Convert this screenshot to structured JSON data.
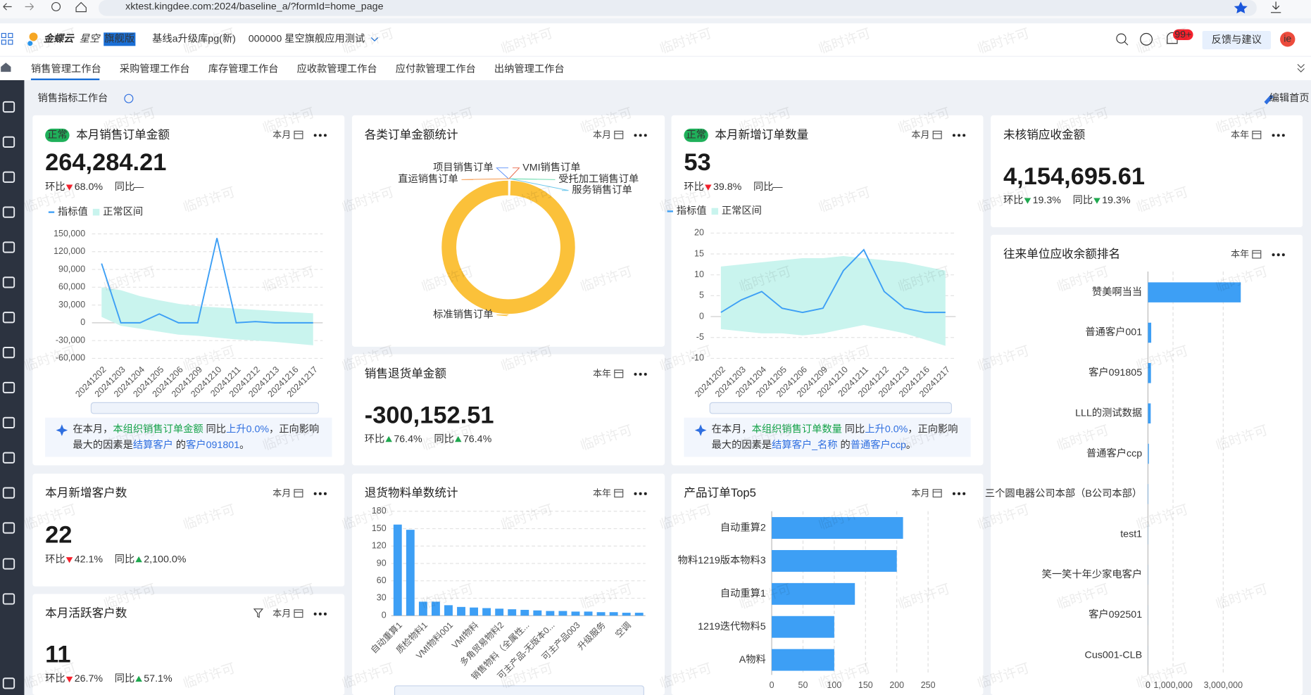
{
  "browser": {
    "url": "xktest.kingdee.com:2024/baseline_a/?formId=home_page"
  },
  "header": {
    "brand": "金蝶云",
    "product": "星空",
    "edition": "旗舰版",
    "org": "基线a升级库pg(新)",
    "tenant": "000000 星空旗舰应用测试",
    "badge": "99+",
    "feedback": "反馈与建议",
    "avatar": "ie"
  },
  "tabs": [
    "销售管理工作台",
    "采购管理工作台",
    "库存管理工作台",
    "应收款管理工作台",
    "应付款管理工作台",
    "出纳管理工作台"
  ],
  "page_title": "销售指标工作台",
  "edit": "编辑首页",
  "watermark": "临时许可",
  "cards": {
    "sales_amount": {
      "tag": "正常",
      "title": "本月销售订单金额",
      "period": "本月",
      "kpi": "264,284.21",
      "mom_label": "环比",
      "mom": {
        "text": "68.0%",
        "trend": "down",
        "color": "#f5222d"
      },
      "yoy_label": "同比",
      "yoy": {
        "text": "—",
        "color": "#666666"
      },
      "chart": {
        "type": "line",
        "categories": [
          "20241202",
          "20241203",
          "20241204",
          "20241205",
          "20241206",
          "20241209",
          "20241210",
          "20241211",
          "20241212",
          "20241213",
          "20241216",
          "20241217"
        ],
        "series": [
          {
            "name": "指标值",
            "color": "#3d9ff5",
            "values": [
              100000,
              0,
              0,
              15000,
              0,
              0,
              143000,
              0,
              2000,
              0,
              0,
              0
            ]
          },
          {
            "name": "正常区间",
            "color": "#c9f4ee",
            "upper": [
              60000,
              55000,
              45000,
              38000,
              32000,
              28000,
              26000,
              24000,
              22000,
              20000,
              18000,
              16000
            ],
            "lower": [
              10000,
              -5000,
              -10000,
              -15000,
              -20000,
              -22000,
              -25000,
              -28000,
              -30000,
              -32000,
              -35000,
              -38000
            ]
          }
        ],
        "ylim": [
          -60000,
          150000
        ],
        "yticks": [
          {
            "value": -60000,
            "label": "-60,000"
          },
          {
            "value": -30000,
            "label": "-30,000"
          },
          0,
          {
            "value": 30000,
            "label": "30,000"
          },
          {
            "value": 60000,
            "label": "60,000"
          },
          {
            "value": 90000,
            "label": "90,000"
          },
          {
            "value": 120000,
            "label": "120,000"
          },
          {
            "value": 150000,
            "label": "150,000"
          }
        ]
      },
      "insight": {
        "line1": [
          {
            "text": "在本月，",
            "style": "plain"
          },
          {
            "text": "本组织销售订单金额",
            "style": "metric"
          },
          {
            "text": " 同比",
            "style": "plain"
          },
          {
            "text": "上升0.0%",
            "style": "up"
          },
          {
            "text": "，正向影响",
            "style": "plain"
          }
        ],
        "line2": [
          {
            "text": "最大的因素是",
            "style": "plain"
          },
          {
            "text": "结算客户",
            "style": "link"
          },
          {
            "text": " 的",
            "style": "plain"
          },
          {
            "text": "客户091801",
            "style": "link"
          },
          {
            "text": "。",
            "style": "plain"
          }
        ]
      }
    },
    "order_types": {
      "title": "各类订单金额统计",
      "period": "本月",
      "chart": {
        "type": "pie",
        "categories": [
          "项目销售订单",
          "VMI销售订单",
          "直运销售订单",
          "受托加工销售订单",
          "服务销售订单",
          "标准销售订单"
        ],
        "values": [
          0.1,
          0.1,
          0.1,
          0.1,
          0.1,
          99.5
        ],
        "colors": [
          "#5b8ff9",
          "#e8684a",
          "#f6903d",
          "#5ad8a6",
          "#6dc8ec",
          "#fbc13a"
        ]
      }
    },
    "return_amount": {
      "title": "销售退货单金额",
      "period": "本年",
      "kpi": "-300,152.51",
      "mom_label": "环比",
      "mom": {
        "text": "76.4%",
        "trend": "up",
        "color": "#1fa84f"
      },
      "yoy_label": "同比",
      "yoy": {
        "text": "76.4%",
        "trend": "up",
        "color": "#1fa84f"
      }
    },
    "new_orders": {
      "tag": "正常",
      "title": "本月新增订单数量",
      "period": "本月",
      "kpi": "53",
      "mom_label": "环比",
      "mom": {
        "text": "39.8%",
        "trend": "down",
        "color": "#f5222d"
      },
      "yoy_label": "同比",
      "yoy": {
        "text": "—",
        "color": "#666666"
      },
      "chart": {
        "type": "line",
        "categories": [
          "20241202",
          "20241203",
          "20241204",
          "20241205",
          "20241206",
          "20241209",
          "20241210",
          "20241211",
          "20241212",
          "20241213",
          "20241216",
          "20241217"
        ],
        "series": [
          {
            "name": "指标值",
            "color": "#3d9ff5",
            "values": [
              1,
              4,
              6,
              2,
              1,
              2,
              11,
              16,
              6,
              2,
              1,
              1
            ]
          },
          {
            "name": "正常区间",
            "color": "#c9f4ee",
            "upper": [
              12,
              12.5,
              13,
              13.5,
              14,
              14,
              14.5,
              14,
              13.5,
              13,
              12,
              11
            ],
            "lower": [
              -3,
              -3.5,
              -4,
              -4,
              -4.5,
              -4,
              -3,
              -2,
              -3,
              -4,
              -5.5,
              -7
            ]
          }
        ],
        "ylim": [
          -10,
          20
        ],
        "yticks": [
          -10,
          -5,
          0,
          5,
          10,
          15,
          20
        ]
      },
      "insight": {
        "line1": [
          {
            "text": "在本月，",
            "style": "plain"
          },
          {
            "text": "本组织销售订单数量",
            "style": "metric"
          },
          {
            "text": " 同比",
            "style": "plain"
          },
          {
            "text": "上升0.0%",
            "style": "up"
          },
          {
            "text": "，正向影响",
            "style": "plain"
          }
        ],
        "line2": [
          {
            "text": "最大的因素是",
            "style": "plain"
          },
          {
            "text": "结算客户_名称",
            "style": "link"
          },
          {
            "text": " 的",
            "style": "plain"
          },
          {
            "text": "普通客户ccp",
            "style": "link"
          },
          {
            "text": "。",
            "style": "plain"
          }
        ]
      }
    },
    "unverified": {
      "title": "未核销应收金额",
      "period": "本年",
      "kpi": "4,154,695.61",
      "mom_label": "环比",
      "mom": {
        "text": "19.3%",
        "trend": "down",
        "color": "#1fa84f"
      },
      "yoy_label": "同比",
      "yoy": {
        "text": "19.3%",
        "trend": "down",
        "color": "#1fa84f"
      }
    },
    "ranking": {
      "title": "往来单位应收余额排名",
      "period": "本年",
      "chart": {
        "type": "hbar",
        "categories": [
          "赞美啊当当",
          "普通客户001",
          "客户091805",
          "LLL的测试数据",
          "普通客户ccp",
          "三个圆电器公司本部（B公司本部）",
          "test1",
          "笑一笑十年少家电客户",
          "客户092501",
          "Cus001-CLB"
        ],
        "values": [
          3700000,
          130000,
          120000,
          110000,
          35000,
          12000,
          6000,
          4000,
          3000,
          2000
        ],
        "color": "#3d9ff5",
        "xlim": [
          0,
          6000000
        ],
        "xticks": [
          0,
          {
            "value": 1000000,
            "label": "1,000,000"
          },
          {
            "value": 3000000,
            "label": "3,000,000"
          }
        ]
      }
    },
    "new_customers": {
      "title": "本月新增客户数",
      "period": "本月",
      "kpi": "22",
      "mom_label": "环比",
      "mom": {
        "text": "42.1%",
        "trend": "down",
        "color": "#f5222d"
      },
      "yoy_label": "同比",
      "yoy": {
        "text": "2,100.0%",
        "trend": "up",
        "color": "#1fa84f"
      }
    },
    "active_customers": {
      "title": "本月活跃客户数",
      "period": "本月",
      "kpi": "11",
      "mom_label": "环比",
      "mom": {
        "text": "26.7%",
        "trend": "down",
        "color": "#f5222d"
      },
      "yoy_label": "同比",
      "yoy": {
        "text": "57.1%",
        "trend": "up",
        "color": "#1fa84f"
      }
    },
    "return_materials": {
      "title": "退货物料单数统计",
      "period": "本年",
      "chart": {
        "type": "bar",
        "categories": [
          "自动重算1",
          null,
          "质检物料1",
          null,
          "VMI物料001",
          null,
          "VMI物料",
          null,
          "多角贸易物料2",
          null,
          "销售物料（全属性...",
          null,
          "可主产品-无版本0...",
          null,
          "可主产品003",
          null,
          "升级服务",
          null,
          "空调",
          null
        ],
        "values": [
          157,
          148,
          24,
          24,
          18,
          15,
          14,
          13,
          12,
          11,
          10,
          9,
          8,
          8,
          7,
          7,
          6,
          6,
          5,
          5
        ],
        "color": "#3d9ff5",
        "ylim": [
          0,
          180
        ],
        "yticks": [
          0,
          30,
          60,
          90,
          120,
          150,
          180
        ]
      }
    },
    "top5": {
      "title": "产品订单Top5",
      "period": "本月",
      "chart": {
        "type": "hbar",
        "categories": [
          "自动重算2",
          "物料1219版本物料3",
          "自动重算1",
          "1219迭代物料5",
          "A物料"
        ],
        "values": [
          210,
          200,
          133,
          100,
          100
        ],
        "color": "#3d9ff5",
        "xlim": [
          0,
          250
        ],
        "xticks": [
          0,
          50,
          100,
          150,
          200,
          250
        ]
      }
    }
  }
}
